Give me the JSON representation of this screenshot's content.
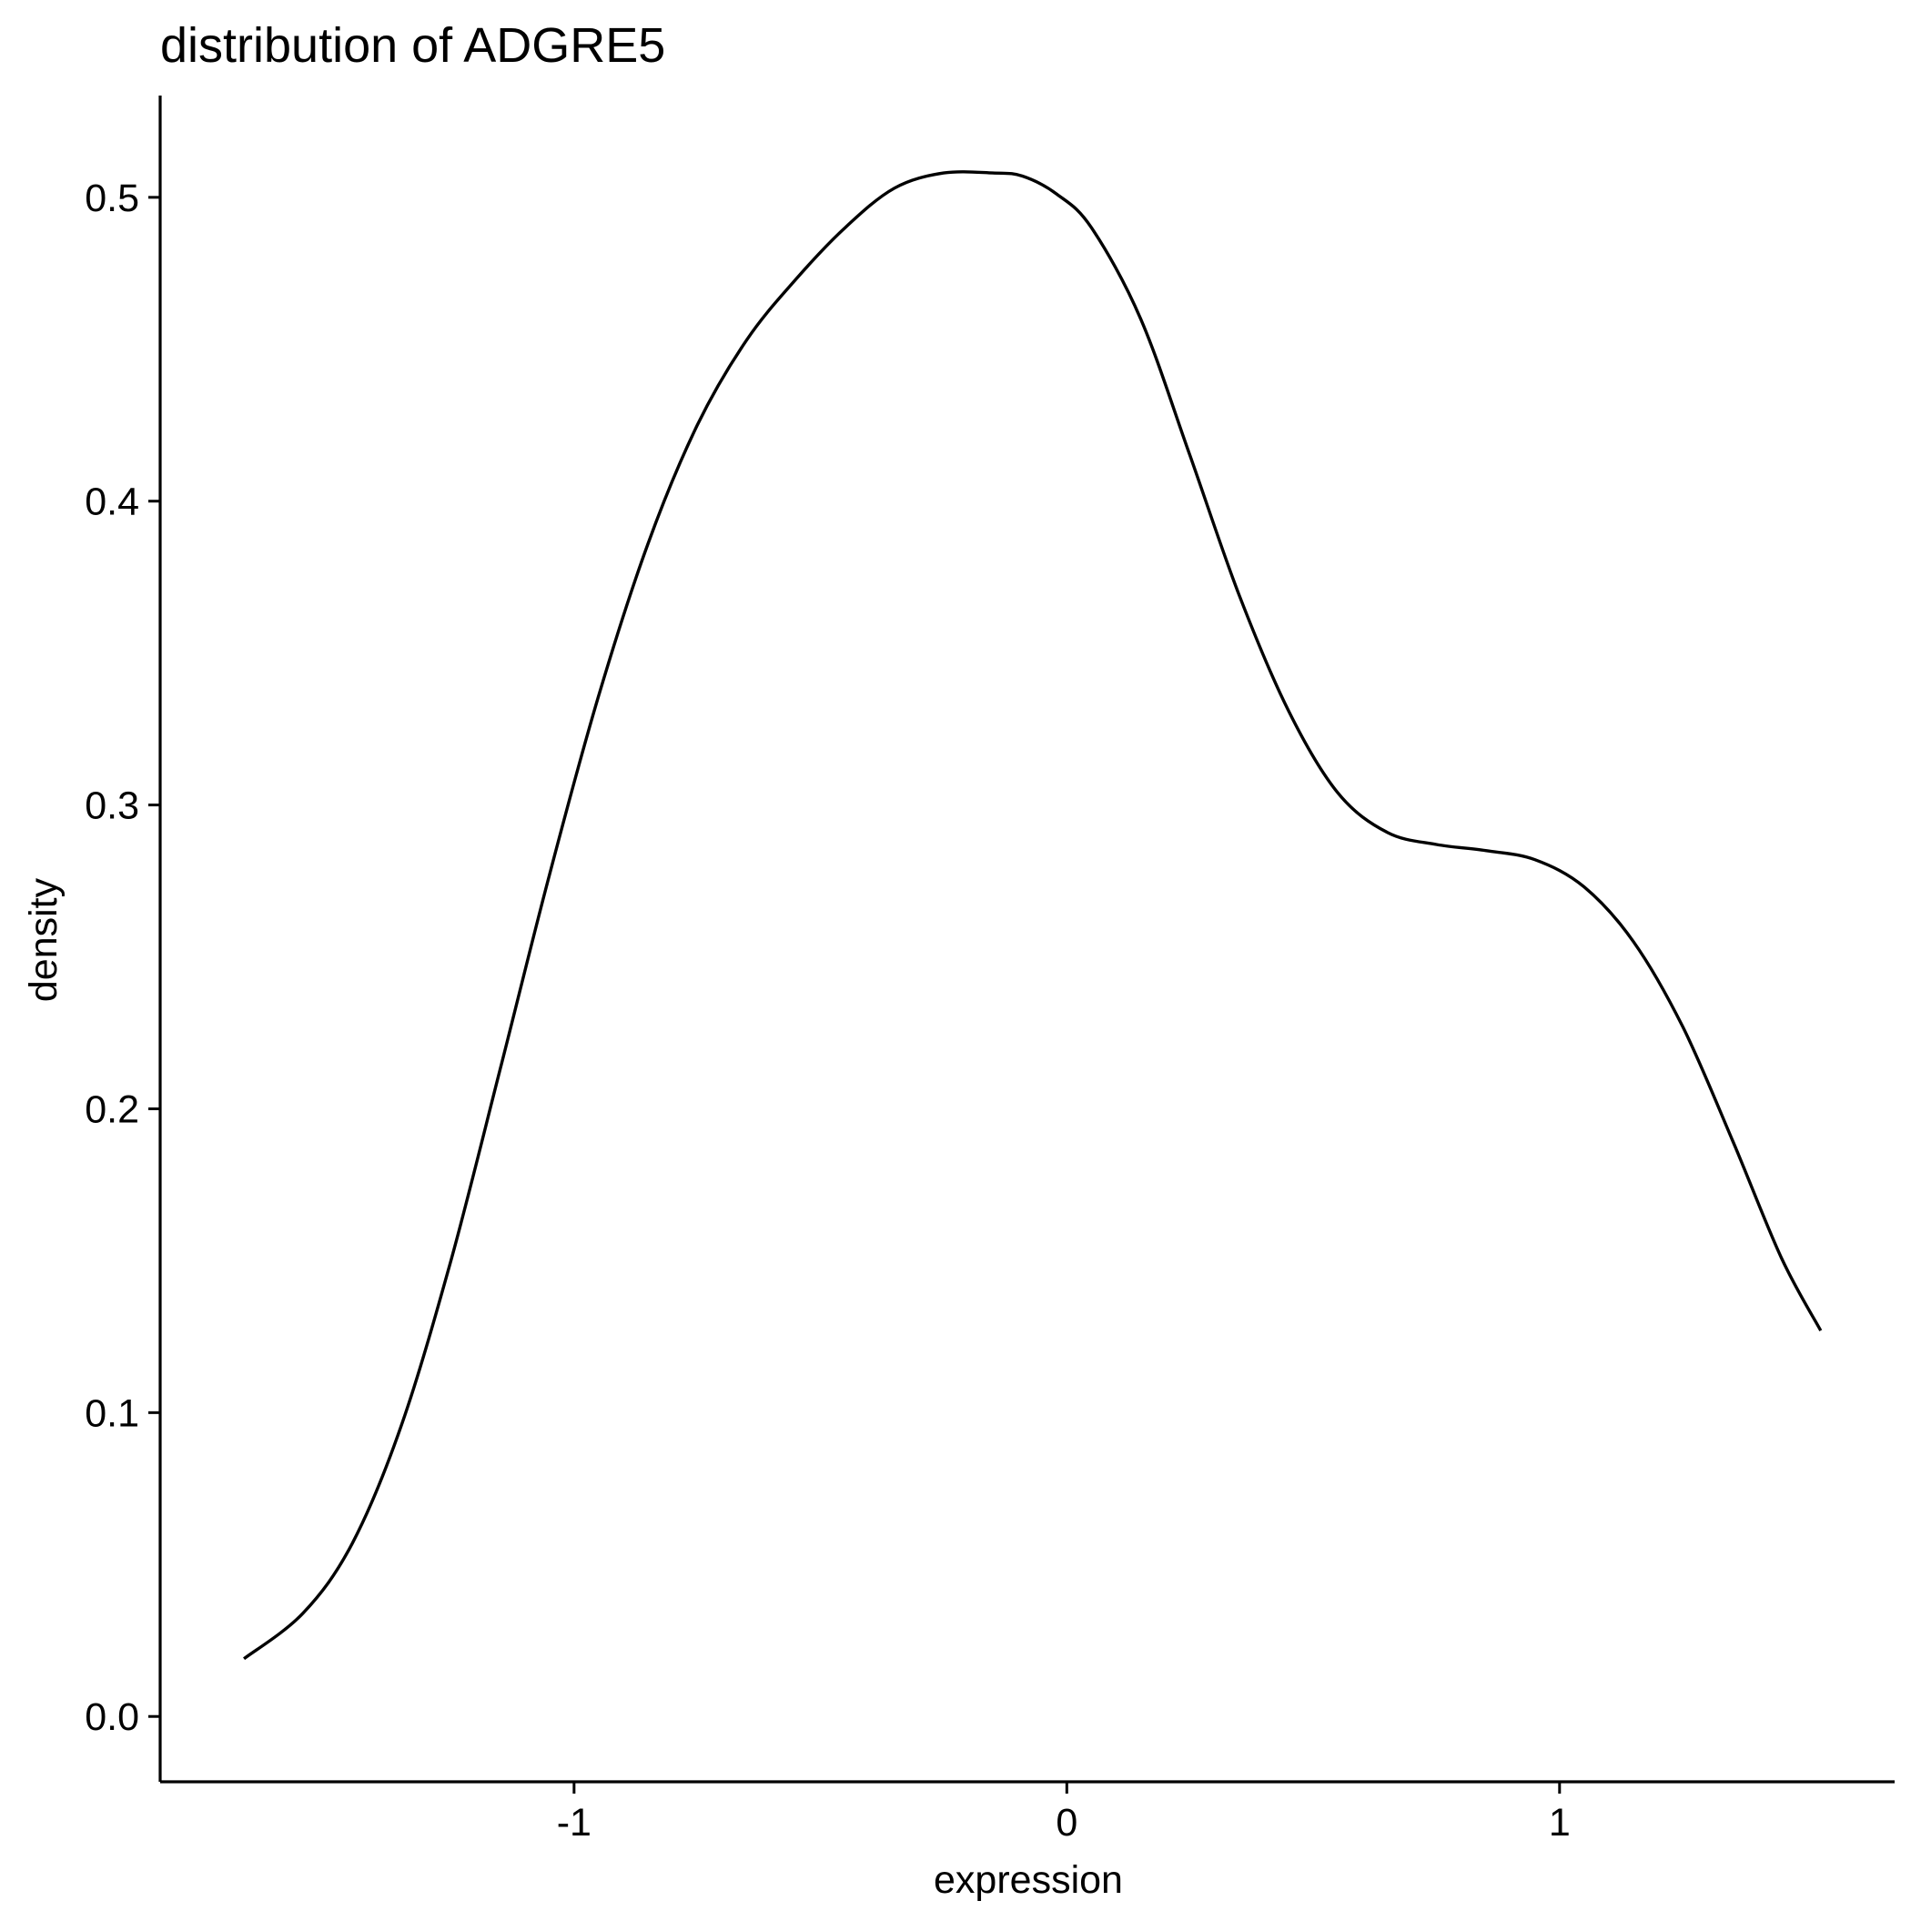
{
  "chart_data": {
    "type": "line",
    "title": "distribution of ADGRE5",
    "xlabel": "expression",
    "ylabel": "density",
    "xlim": [
      -1.84,
      1.68
    ],
    "ylim": [
      -0.0215,
      0.5335
    ],
    "x_ticks": [
      -1,
      0,
      1
    ],
    "x_tick_labels": [
      "-1",
      "0",
      "1"
    ],
    "y_ticks": [
      0.0,
      0.1,
      0.2,
      0.3,
      0.4,
      0.5
    ],
    "y_tick_labels": [
      "0.0",
      "0.1",
      "0.2",
      "0.3",
      "0.4",
      "0.5"
    ],
    "grid": false,
    "legend": "none",
    "line_color": "#000000",
    "series": [
      {
        "x": [
          -1.67,
          -1.55,
          -1.45,
          -1.35,
          -1.25,
          -1.15,
          -1.05,
          -0.95,
          -0.85,
          -0.75,
          -0.65,
          -0.55,
          -0.45,
          -0.35,
          -0.25,
          -0.15,
          -0.09,
          -0.02,
          0.05,
          0.15,
          0.25,
          0.35,
          0.45,
          0.55,
          0.65,
          0.75,
          0.85,
          0.95,
          1.05,
          1.15,
          1.25,
          1.35,
          1.45,
          1.53
        ],
        "y": [
          0.019,
          0.034,
          0.057,
          0.096,
          0.15,
          0.213,
          0.277,
          0.336,
          0.386,
          0.425,
          0.453,
          0.473,
          0.49,
          0.503,
          0.508,
          0.508,
          0.507,
          0.501,
          0.49,
          0.46,
          0.415,
          0.369,
          0.331,
          0.304,
          0.291,
          0.287,
          0.285,
          0.282,
          0.273,
          0.255,
          0.227,
          0.19,
          0.151,
          0.127
        ]
      }
    ]
  }
}
